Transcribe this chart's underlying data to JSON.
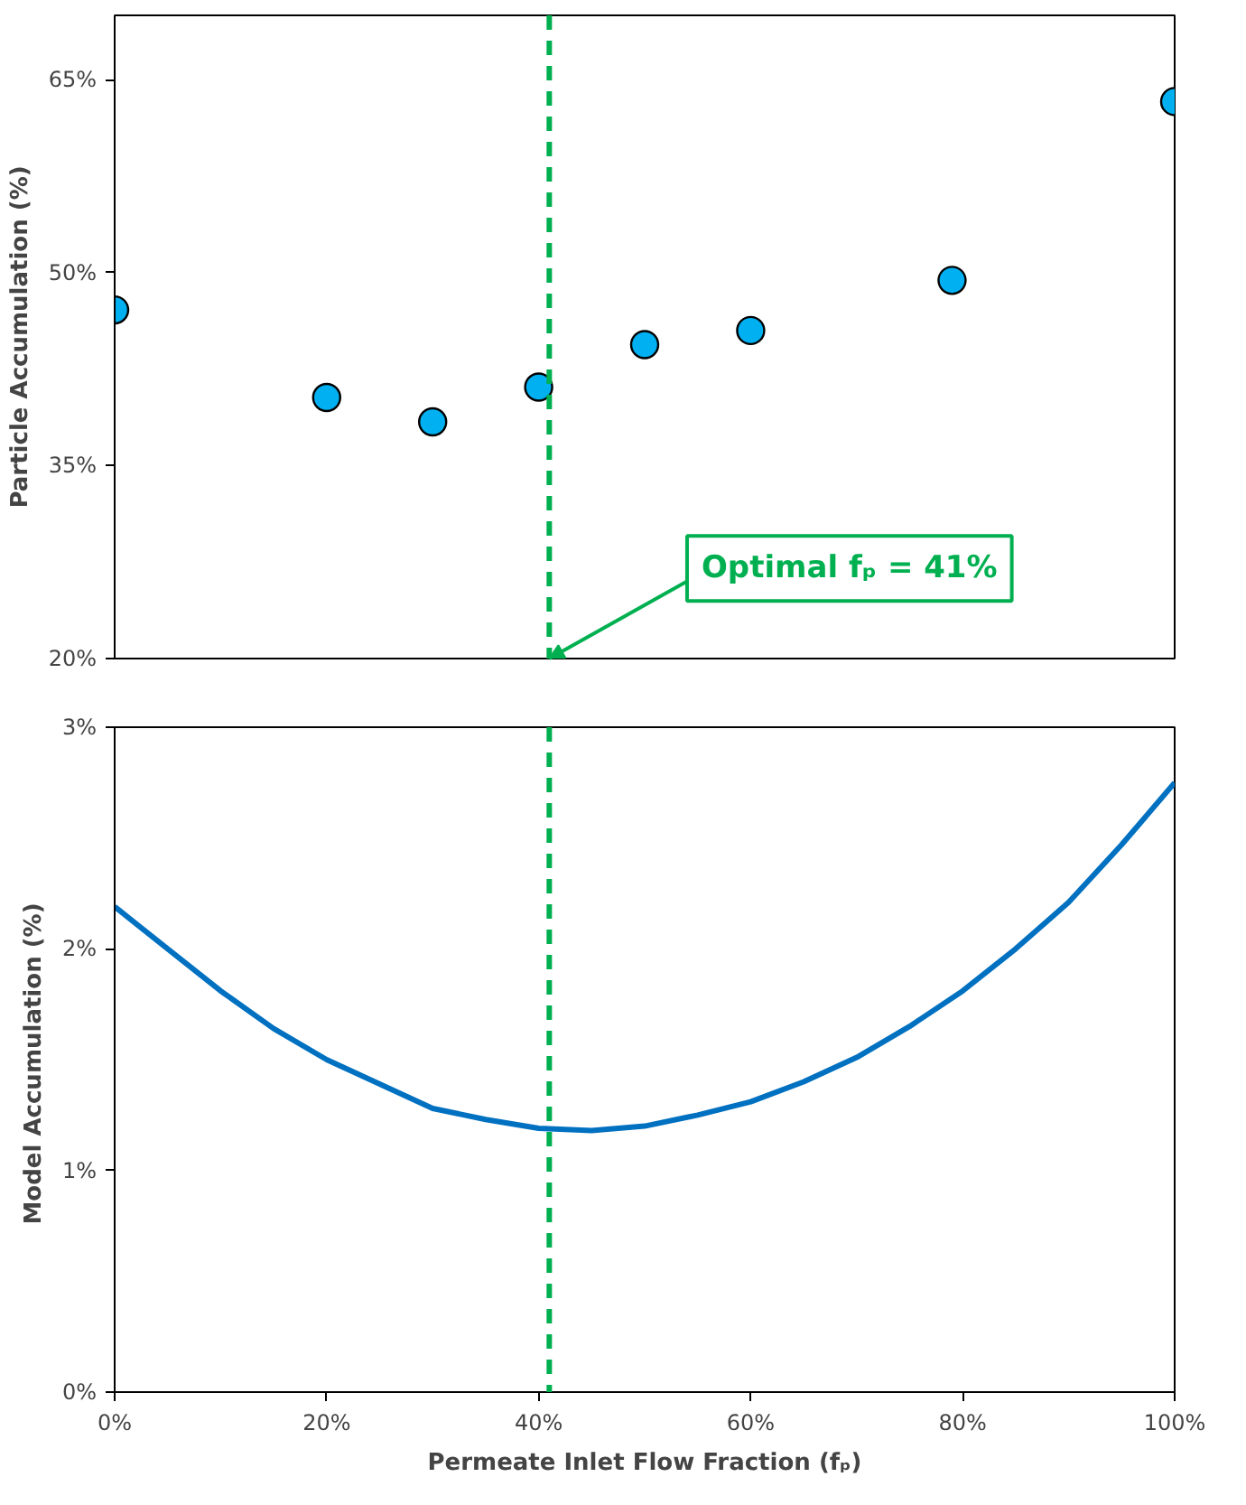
{
  "chart_data": [
    {
      "type": "scatter",
      "ylabel": "Particle Accumulation (%)",
      "x": [
        0,
        20,
        30,
        40,
        50,
        60,
        79,
        100
      ],
      "series": [
        {
          "color": "#00b0f0",
          "values": [
            47.1,
            40.3,
            38.4,
            41.1,
            44.4,
            45.5,
            49.4,
            63.3
          ]
        }
      ],
      "marker": "circle",
      "xlim": [
        0,
        100
      ],
      "ylim": [
        20,
        70
      ],
      "yticks": [
        {
          "value": 20,
          "label": "20%"
        },
        {
          "value": 35,
          "label": "35%"
        },
        {
          "value": 50,
          "label": "50%"
        },
        {
          "value": 65,
          "label": "65%"
        }
      ],
      "tick_labels": "y",
      "grid": false,
      "ref_lines": [
        {
          "axis": "x",
          "value": 41,
          "label": "Optimal fₚ = 41%",
          "color": "#00b050",
          "line_style": "dashed"
        }
      ]
    },
    {
      "type": "line",
      "xlabel": "Permeate Inlet Flow Fraction (fₚ)",
      "ylabel": "Model  Accumulation (%)",
      "x": [
        0,
        5,
        10,
        15,
        20,
        25,
        30,
        35,
        40,
        45,
        50,
        55,
        60,
        65,
        70,
        75,
        80,
        85,
        90,
        95,
        100
      ],
      "series": [
        {
          "color": "#0070c0",
          "values": [
            2.19,
            2.0,
            1.81,
            1.64,
            1.5,
            1.39,
            1.28,
            1.23,
            1.19,
            1.18,
            1.2,
            1.25,
            1.31,
            1.4,
            1.51,
            1.65,
            1.81,
            2.0,
            2.21,
            2.47,
            2.75
          ]
        }
      ],
      "marker": "none",
      "line_style": "solid",
      "xlim": [
        0,
        100
      ],
      "ylim": [
        0,
        3
      ],
      "xticks": [
        {
          "value": 0,
          "label": "0%"
        },
        {
          "value": 20,
          "label": "20%"
        },
        {
          "value": 40,
          "label": "40%"
        },
        {
          "value": 60,
          "label": "60%"
        },
        {
          "value": 80,
          "label": "80%"
        },
        {
          "value": 100,
          "label": "100%"
        }
      ],
      "yticks": [
        {
          "value": 0,
          "label": "0%"
        },
        {
          "value": 1,
          "label": "1%"
        },
        {
          "value": 2,
          "label": "2%"
        },
        {
          "value": 3,
          "label": "3%"
        }
      ],
      "grid": false,
      "ref_lines": [
        {
          "axis": "x",
          "value": 41,
          "color": "#00b050",
          "line_style": "dashed"
        }
      ]
    }
  ]
}
